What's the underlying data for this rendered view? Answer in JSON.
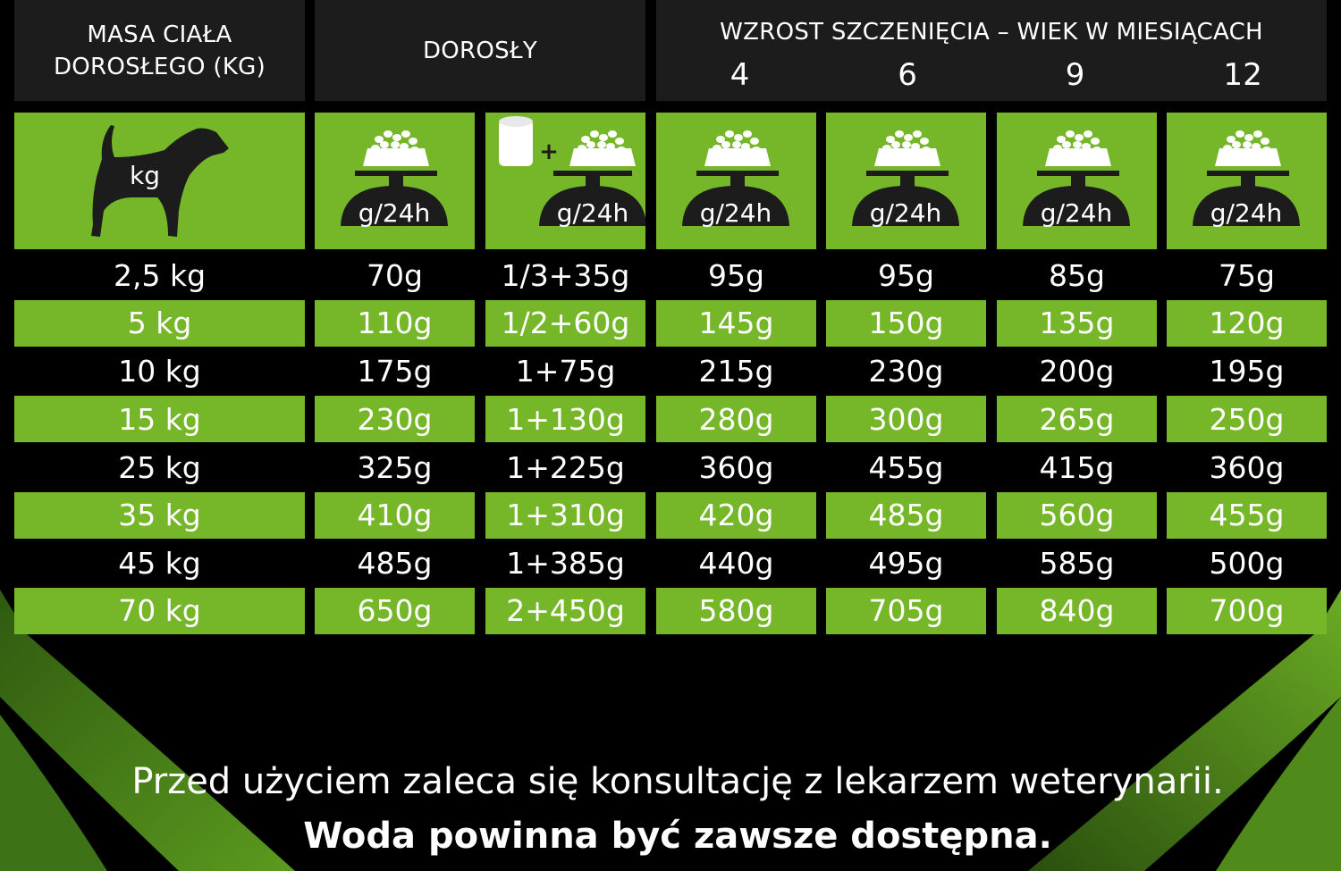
{
  "header": {
    "body_mass": "MASA CIAŁA\nDOROSŁEGO (KG)",
    "adult": "DOROSŁY",
    "puppy_growth": "WZROST SZCZENIĘCIA – WIEK W MIESIĄCACH",
    "ages": [
      "4",
      "6",
      "9",
      "12"
    ]
  },
  "icons": {
    "dog": {
      "icon": "dog-silhouette-icon",
      "label": "kg"
    },
    "scale_label": "g/24h",
    "plus": "+",
    "columns": [
      "bowl-scale-icon",
      "can-plus-bowl-scale-icon",
      "bowl-scale-icon",
      "bowl-scale-icon",
      "bowl-scale-icon",
      "bowl-scale-icon",
      "bowl-scale-icon"
    ]
  },
  "rows": [
    [
      "2,5 kg",
      "70g",
      "1/3+35g",
      "95g",
      "95g",
      "85g",
      "75g"
    ],
    [
      "5 kg",
      "110g",
      "1/2+60g",
      "145g",
      "150g",
      "135g",
      "120g"
    ],
    [
      "10 kg",
      "175g",
      "1+75g",
      "215g",
      "230g",
      "200g",
      "195g"
    ],
    [
      "15 kg",
      "230g",
      "1+130g",
      "280g",
      "300g",
      "265g",
      "250g"
    ],
    [
      "25 kg",
      "325g",
      "1+225g",
      "360g",
      "455g",
      "415g",
      "360g"
    ],
    [
      "35 kg",
      "410g",
      "1+310g",
      "420g",
      "485g",
      "560g",
      "455g"
    ],
    [
      "45 kg",
      "485g",
      "1+385g",
      "440g",
      "495g",
      "585g",
      "500g"
    ],
    [
      "70 kg",
      "650g",
      "2+450g",
      "580g",
      "705g",
      "840g",
      "700g"
    ]
  ],
  "notes": {
    "consult": "Przed użyciem zaleca się konsultację z lekarzem weterynarii.",
    "water": "Woda powinna być zawsze dostępna."
  },
  "colors": {
    "green": "#76b72a",
    "header_bg": "#1c1c1c",
    "background": "#000000"
  }
}
